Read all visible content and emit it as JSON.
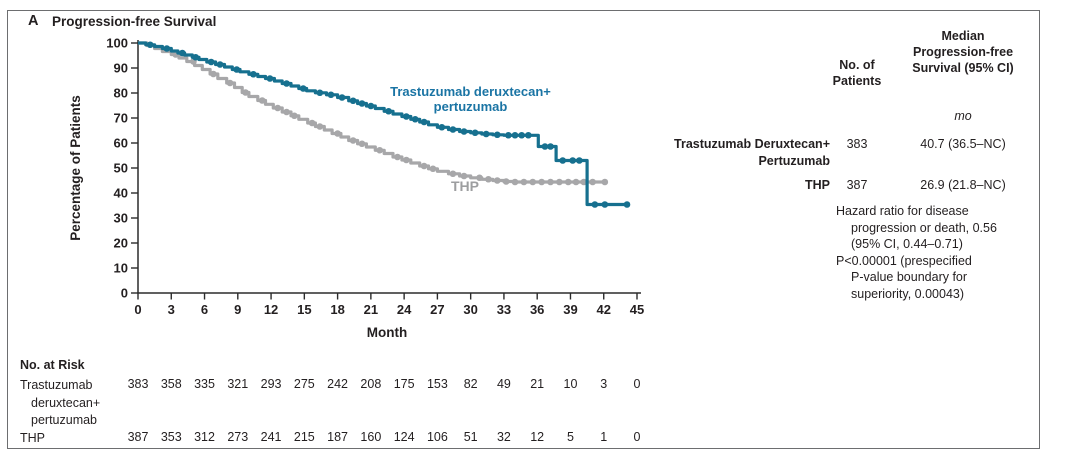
{
  "panel": {
    "label": "A",
    "title": "Progression-free Survival"
  },
  "colors": {
    "tdxd": "#16708f",
    "tdxd_label": "#1a74a4",
    "thp": "#a7a7a9",
    "thp_label": "#9d9ea0",
    "axis": "#2b2b2b",
    "text": "#231f20",
    "border": "#6d6e70"
  },
  "chart_data": {
    "type": "line",
    "subtype": "kaplan-meier-step",
    "title": "Progression-free Survival",
    "xlabel": "Month",
    "ylabel": "Percentage of Patients",
    "xlim": [
      0,
      45
    ],
    "ylim": [
      0,
      100
    ],
    "xticks": [
      0,
      3,
      6,
      9,
      12,
      15,
      18,
      21,
      24,
      27,
      30,
      33,
      36,
      39,
      42,
      45
    ],
    "yticks": [
      0,
      10,
      20,
      30,
      40,
      50,
      60,
      70,
      80,
      90,
      100
    ],
    "grid": false,
    "legend_position": "inline-labels",
    "series": [
      {
        "name": "Trastuzumab deruxtecan+pertuzumab",
        "label_lines": [
          "Trastuzumab deruxtecan+",
          "pertuzumab"
        ],
        "color": "#16708f",
        "points": [
          [
            0,
            100
          ],
          [
            0.7,
            99.3
          ],
          [
            1.5,
            98.6
          ],
          [
            2.2,
            97.8
          ],
          [
            3,
            96.8
          ],
          [
            3.6,
            96
          ],
          [
            4.2,
            95.2
          ],
          [
            4.9,
            94.3
          ],
          [
            5.5,
            93.4
          ],
          [
            6.2,
            92.4
          ],
          [
            7,
            91.4
          ],
          [
            7.8,
            90.4
          ],
          [
            8.5,
            89.4
          ],
          [
            9.2,
            88.5
          ],
          [
            10,
            87.5
          ],
          [
            10.8,
            86.6
          ],
          [
            11.5,
            85.8
          ],
          [
            12.3,
            84.8
          ],
          [
            13,
            83.8
          ],
          [
            13.8,
            82.8
          ],
          [
            14.5,
            81.8
          ],
          [
            15.2,
            80.9
          ],
          [
            16,
            80.1
          ],
          [
            17,
            79.3
          ],
          [
            18,
            78.2
          ],
          [
            19,
            76.9
          ],
          [
            19.8,
            75.8
          ],
          [
            20.6,
            74.8
          ],
          [
            21.4,
            73.8
          ],
          [
            22.2,
            72.7
          ],
          [
            23,
            71.6
          ],
          [
            23.8,
            70.6
          ],
          [
            24.6,
            69.5
          ],
          [
            25.4,
            68.4
          ],
          [
            26.2,
            67.3
          ],
          [
            27,
            66.3
          ],
          [
            28,
            65.4
          ],
          [
            29,
            64.6
          ],
          [
            30,
            64.1
          ],
          [
            31,
            63.6
          ],
          [
            32,
            63.3
          ],
          [
            33,
            63.1
          ],
          [
            35.9,
            63.1
          ],
          [
            36.1,
            58.6
          ],
          [
            37.5,
            58.6
          ],
          [
            37.7,
            53
          ],
          [
            40.3,
            53
          ],
          [
            40.5,
            35.4
          ],
          [
            44.1,
            35.4
          ]
        ],
        "censor_months": [
          1.1,
          2.6,
          4,
          5.2,
          6.6,
          7.4,
          8.9,
          10.4,
          11.9,
          13.4,
          14.9,
          16.4,
          17.4,
          18.4,
          19.4,
          20.2,
          21,
          22.6,
          24.2,
          25,
          25.8,
          27.4,
          28.4,
          29.4,
          30.4,
          31.4,
          32.4,
          33.4,
          34,
          34.6,
          35.2,
          36.7,
          37.2,
          38.3,
          39.2,
          39.8,
          41.2,
          42.1,
          44.1
        ]
      },
      {
        "name": "THP",
        "label_lines": [
          "THP"
        ],
        "color": "#a7a7a9",
        "points": [
          [
            0,
            100
          ],
          [
            0.8,
            99
          ],
          [
            1.5,
            97.8
          ],
          [
            2.2,
            96.6
          ],
          [
            3,
            95.4
          ],
          [
            3.7,
            94
          ],
          [
            4.4,
            92.6
          ],
          [
            5.1,
            91
          ],
          [
            5.8,
            89.4
          ],
          [
            6.5,
            87.6
          ],
          [
            7.2,
            85.8
          ],
          [
            8,
            84
          ],
          [
            8.7,
            82.2
          ],
          [
            9.4,
            80.2
          ],
          [
            10,
            78.6
          ],
          [
            10.8,
            77
          ],
          [
            11.5,
            75.5
          ],
          [
            12.2,
            74
          ],
          [
            13,
            72.4
          ],
          [
            13.8,
            70.9
          ],
          [
            14.5,
            69.5
          ],
          [
            15.3,
            68
          ],
          [
            16,
            66.6
          ],
          [
            16.8,
            65.2
          ],
          [
            17.5,
            63.8
          ],
          [
            18.3,
            62.4
          ],
          [
            19,
            61
          ],
          [
            19.8,
            59.7
          ],
          [
            20.6,
            58.4
          ],
          [
            21.4,
            57.1
          ],
          [
            22.2,
            55.8
          ],
          [
            23,
            54.4
          ],
          [
            23.8,
            53.2
          ],
          [
            24.6,
            52
          ],
          [
            25.4,
            50.8
          ],
          [
            26.2,
            49.7
          ],
          [
            27,
            48.7
          ],
          [
            28,
            47.7
          ],
          [
            29,
            46.8
          ],
          [
            30,
            46.1
          ],
          [
            31,
            45.5
          ],
          [
            32,
            45
          ],
          [
            33,
            44.6
          ],
          [
            34,
            44.4
          ],
          [
            42.1,
            44.4
          ]
        ],
        "censor_months": [
          3.4,
          5,
          6.8,
          8.3,
          9.7,
          11.2,
          12.6,
          13.4,
          14.1,
          15.7,
          16.4,
          18,
          19.4,
          20.2,
          21.8,
          23.4,
          24.2,
          25.8,
          26.6,
          28.4,
          29.4,
          30.8,
          31.6,
          32.4,
          33.2,
          34,
          34.8,
          35.6,
          36.4,
          37.2,
          38,
          38.8,
          39.5,
          40.2,
          41,
          42.1
        ]
      }
    ]
  },
  "summary_table": {
    "col_headers": {
      "patients": "No. of Patients",
      "median": "Median Progression-free Survival (95% CI)"
    },
    "unit": "mo",
    "rows": [
      {
        "label_lines": [
          "Trastuzumab Deruxtecan+",
          "Pertuzumab"
        ],
        "n": "383",
        "median": "40.7 (36.5–NC)"
      },
      {
        "label_lines": [
          "THP"
        ],
        "n": "387",
        "median": "26.9 (21.8–NC)"
      }
    ],
    "hazard_lines": [
      {
        "text": "Hazard ratio for disease",
        "indent": false
      },
      {
        "text": "progression or death, 0.56",
        "indent": true
      },
      {
        "text": "(95% CI, 0.44–0.71)",
        "indent": true
      },
      {
        "text": "P<0.00001 (prespecified",
        "indent": false
      },
      {
        "text": "P-value boundary for",
        "indent": true
      },
      {
        "text": "superiority, 0.00043)",
        "indent": true
      }
    ]
  },
  "at_risk": {
    "title": "No. at Risk",
    "months": [
      0,
      3,
      6,
      9,
      12,
      15,
      18,
      21,
      24,
      27,
      30,
      33,
      36,
      39,
      42,
      45
    ],
    "rows": [
      {
        "label_lines": [
          "Trastuzumab",
          "deruxtecan+",
          "pertuzumab"
        ],
        "values": [
          "383",
          "358",
          "335",
          "321",
          "293",
          "275",
          "242",
          "208",
          "175",
          "153",
          "82",
          "49",
          "21",
          "10",
          "3",
          "0"
        ]
      },
      {
        "label_lines": [
          "THP"
        ],
        "values": [
          "387",
          "353",
          "312",
          "273",
          "241",
          "215",
          "187",
          "160",
          "124",
          "106",
          "51",
          "32",
          "12",
          "5",
          "1",
          "0"
        ]
      }
    ]
  }
}
